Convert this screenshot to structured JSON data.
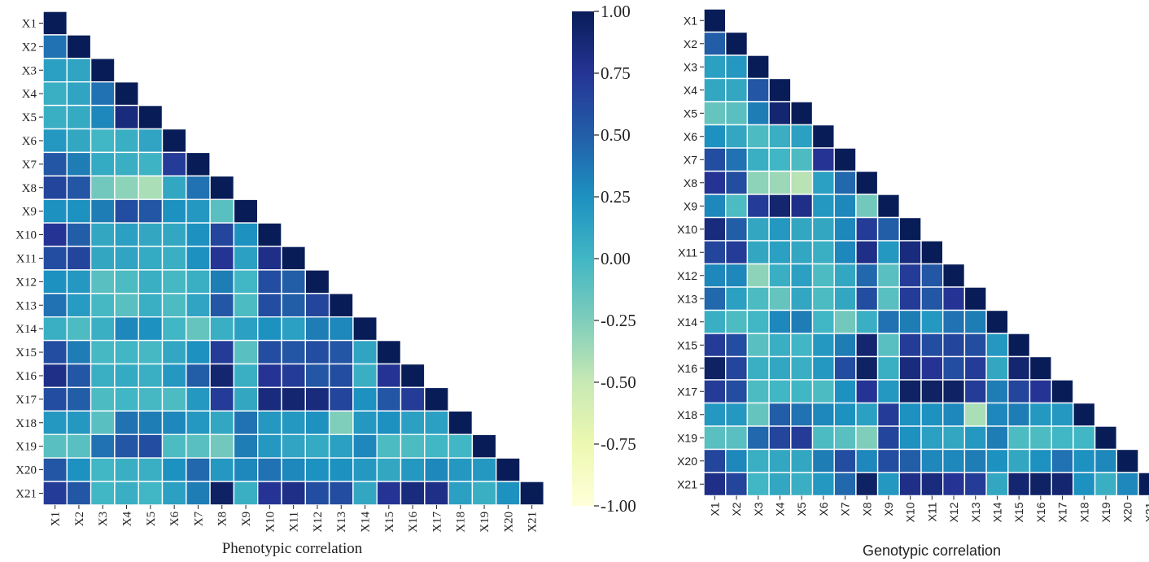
{
  "chart_data": [
    {
      "type": "heatmap",
      "title": "Phenotypic correlation",
      "labels": [
        "X1",
        "X2",
        "X3",
        "X4",
        "X5",
        "X6",
        "X7",
        "X8",
        "X9",
        "X10",
        "X11",
        "X12",
        "X13",
        "X14",
        "X15",
        "X16",
        "X17",
        "X18",
        "X19",
        "X20",
        "X21"
      ],
      "values": [
        [
          1.0
        ],
        [
          0.4,
          1.0
        ],
        [
          0.15,
          0.12,
          1.0
        ],
        [
          0.05,
          0.12,
          0.4,
          1.0
        ],
        [
          0.05,
          0.08,
          0.3,
          0.85,
          1.0
        ],
        [
          0.2,
          0.1,
          0.0,
          0.05,
          0.12,
          1.0
        ],
        [
          0.55,
          0.35,
          0.08,
          0.05,
          0.02,
          0.7,
          1.0
        ],
        [
          0.65,
          0.55,
          -0.2,
          -0.3,
          -0.4,
          0.1,
          0.4,
          1.0
        ],
        [
          0.25,
          0.25,
          0.35,
          0.6,
          0.55,
          0.25,
          0.2,
          -0.1,
          1.0
        ],
        [
          0.75,
          0.5,
          0.1,
          0.15,
          0.1,
          0.1,
          0.25,
          0.65,
          0.25,
          1.0
        ],
        [
          0.6,
          0.65,
          0.1,
          0.12,
          0.08,
          0.05,
          0.25,
          0.75,
          0.15,
          0.8,
          1.0
        ],
        [
          0.25,
          0.2,
          -0.1,
          -0.05,
          0.05,
          -0.02,
          0.05,
          0.35,
          0.0,
          0.6,
          0.5,
          1.0
        ],
        [
          0.4,
          0.18,
          -0.02,
          -0.1,
          0.05,
          -0.05,
          0.12,
          0.55,
          -0.05,
          0.6,
          0.5,
          0.65,
          1.0
        ],
        [
          0.05,
          -0.05,
          0.05,
          0.3,
          0.25,
          0.0,
          -0.15,
          0.05,
          0.15,
          0.25,
          0.15,
          0.35,
          0.3,
          1.0
        ],
        [
          0.6,
          0.35,
          -0.02,
          0.0,
          -0.02,
          0.1,
          0.25,
          0.7,
          -0.1,
          0.6,
          0.55,
          0.6,
          0.55,
          0.12,
          1.0
        ],
        [
          0.8,
          0.55,
          0.05,
          0.08,
          0.05,
          0.2,
          0.5,
          0.9,
          0.05,
          0.75,
          0.7,
          0.55,
          0.6,
          0.05,
          0.75,
          1.0
        ],
        [
          0.6,
          0.5,
          -0.05,
          0.0,
          -0.02,
          -0.05,
          0.2,
          0.7,
          0.1,
          0.85,
          0.9,
          0.85,
          0.65,
          0.25,
          0.55,
          0.7,
          1.0
        ],
        [
          0.2,
          0.2,
          -0.1,
          0.4,
          0.35,
          0.3,
          0.2,
          0.1,
          0.4,
          0.2,
          0.2,
          0.25,
          -0.25,
          0.2,
          0.25,
          0.15,
          0.15,
          1.0
        ],
        [
          -0.1,
          -0.1,
          0.4,
          0.55,
          0.6,
          -0.05,
          -0.1,
          -0.2,
          0.35,
          0.2,
          0.12,
          0.08,
          0.15,
          0.3,
          -0.05,
          -0.05,
          0.0,
          0.0,
          1.0
        ],
        [
          0.55,
          0.25,
          0.0,
          0.05,
          0.05,
          0.25,
          0.45,
          0.2,
          0.3,
          0.4,
          0.3,
          0.25,
          0.25,
          0.2,
          0.1,
          0.2,
          0.3,
          0.2,
          0.2,
          1.0
        ],
        [
          0.7,
          0.55,
          0.0,
          0.05,
          0.0,
          0.15,
          0.35,
          0.95,
          0.05,
          0.75,
          0.8,
          0.6,
          0.6,
          0.1,
          0.75,
          0.85,
          0.8,
          0.15,
          0.05,
          0.25,
          1.0
        ]
      ]
    },
    {
      "type": "heatmap",
      "title": "Genotypic correlation",
      "labels": [
        "X1",
        "X2",
        "X3",
        "X4",
        "X5",
        "X6",
        "X7",
        "X8",
        "X9",
        "X10",
        "X11",
        "X12",
        "X13",
        "X14",
        "X15",
        "X16",
        "X17",
        "X18",
        "X19",
        "X20",
        "X21"
      ],
      "values": [
        [
          1.0
        ],
        [
          0.5,
          1.0
        ],
        [
          0.15,
          0.2,
          1.0
        ],
        [
          0.1,
          0.1,
          0.55,
          1.0
        ],
        [
          -0.15,
          -0.1,
          0.35,
          0.9,
          1.0
        ],
        [
          0.25,
          0.1,
          -0.05,
          0.05,
          0.15,
          1.0
        ],
        [
          0.6,
          0.4,
          0.05,
          0.0,
          -0.05,
          0.75,
          1.0
        ],
        [
          0.75,
          0.6,
          -0.3,
          -0.35,
          -0.45,
          0.15,
          0.45,
          1.0
        ],
        [
          0.3,
          -0.05,
          0.7,
          0.9,
          0.8,
          0.2,
          0.3,
          -0.2,
          1.0
        ],
        [
          0.85,
          0.5,
          0.1,
          0.2,
          0.1,
          0.1,
          0.3,
          0.7,
          0.5,
          1.0
        ],
        [
          0.65,
          0.7,
          0.1,
          0.15,
          0.1,
          0.05,
          0.3,
          0.8,
          0.2,
          0.85,
          1.0
        ],
        [
          0.3,
          0.3,
          -0.3,
          0.05,
          0.15,
          -0.05,
          0.1,
          0.45,
          -0.1,
          0.7,
          0.55,
          1.0
        ],
        [
          0.45,
          0.15,
          -0.05,
          -0.15,
          0.1,
          -0.05,
          0.1,
          0.6,
          -0.1,
          0.7,
          0.55,
          0.75,
          1.0
        ],
        [
          0.05,
          -0.05,
          0.0,
          0.3,
          0.35,
          0.0,
          -0.2,
          0.05,
          0.4,
          0.35,
          0.2,
          0.4,
          0.35,
          1.0
        ],
        [
          0.7,
          0.6,
          -0.1,
          0.05,
          0.0,
          0.2,
          0.35,
          0.9,
          -0.1,
          0.7,
          0.6,
          0.65,
          0.6,
          0.2,
          1.0
        ],
        [
          0.95,
          0.65,
          0.05,
          0.1,
          0.05,
          0.2,
          0.6,
          0.95,
          0.05,
          0.85,
          0.75,
          0.6,
          0.7,
          0.1,
          0.9,
          1.0
        ],
        [
          0.7,
          0.6,
          -0.05,
          0.0,
          0.0,
          -0.05,
          0.25,
          0.75,
          0.2,
          0.95,
          0.95,
          0.95,
          0.7,
          0.35,
          0.65,
          0.75,
          1.0
        ],
        [
          0.2,
          0.2,
          -0.15,
          0.5,
          0.4,
          0.3,
          0.25,
          0.15,
          0.7,
          0.25,
          0.25,
          0.3,
          -0.4,
          0.3,
          0.35,
          0.2,
          0.2,
          1.0
        ],
        [
          -0.1,
          -0.1,
          0.45,
          0.65,
          0.7,
          -0.05,
          -0.1,
          -0.25,
          0.65,
          0.25,
          0.15,
          0.1,
          0.2,
          0.35,
          -0.05,
          -0.05,
          0.0,
          0.0,
          1.0
        ],
        [
          0.65,
          0.3,
          0.05,
          0.1,
          0.1,
          0.35,
          0.6,
          0.3,
          0.6,
          0.5,
          0.3,
          0.3,
          0.35,
          0.25,
          0.1,
          0.25,
          0.4,
          0.25,
          0.3,
          1.0
        ],
        [
          0.8,
          0.65,
          0.0,
          0.1,
          0.05,
          0.2,
          0.45,
          0.95,
          0.2,
          0.8,
          0.85,
          0.75,
          0.7,
          0.1,
          0.9,
          0.95,
          0.9,
          0.25,
          0.05,
          0.3,
          1.0
        ]
      ]
    }
  ],
  "colorbar": {
    "ticks": [
      "1.00",
      "0.75",
      "0.50",
      "0.25",
      "0.00",
      "-0.25",
      "-0.50",
      "-0.75",
      "-1.00"
    ],
    "min": -1.0,
    "max": 1.0,
    "stops": [
      "#ffffd9",
      "#edf8b1",
      "#c7e9b4",
      "#7fcdbb",
      "#41b6c4",
      "#1d91c0",
      "#225ea8",
      "#253494",
      "#081d58"
    ]
  }
}
